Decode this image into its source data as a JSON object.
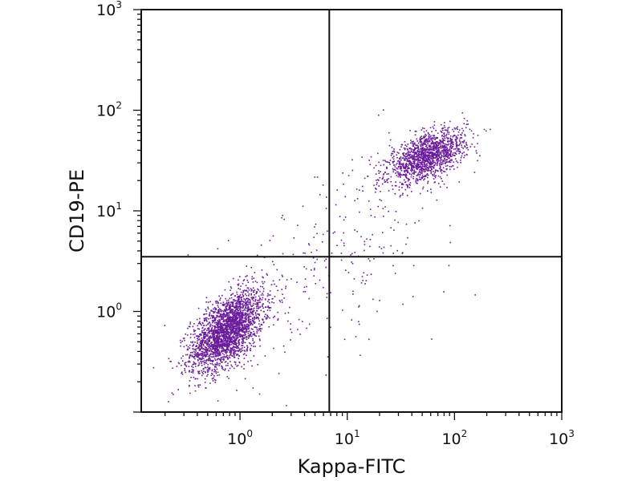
{
  "chart_data": {
    "type": "scatter",
    "subtype": "flow-cytometry-dot-plot",
    "xlabel": "Kappa-FITC",
    "ylabel": "CD19-PE",
    "xscale": "log",
    "yscale": "log",
    "xlim": [
      0.12,
      1000
    ],
    "ylim": [
      0.1,
      1000
    ],
    "x_ticks": [
      {
        "base": "10",
        "exp": "0",
        "value": 1
      },
      {
        "base": "10",
        "exp": "1",
        "value": 10
      },
      {
        "base": "10",
        "exp": "2",
        "value": 100
      },
      {
        "base": "10",
        "exp": "3",
        "value": 1000
      }
    ],
    "y_ticks": [
      {
        "base": "10",
        "exp": "0",
        "value": 1
      },
      {
        "base": "10",
        "exp": "1",
        "value": 10
      },
      {
        "base": "10",
        "exp": "2",
        "value": 100
      },
      {
        "base": "10",
        "exp": "3",
        "value": 1000
      }
    ],
    "quadrant_gates": {
      "x": 6.8,
      "y": 3.5
    },
    "point_color": "#6a1b9a",
    "populations": [
      {
        "name": "CD19-negative / Kappa-negative",
        "center_x": 0.75,
        "center_y": 0.65,
        "spread_log_x": 0.17,
        "spread_log_y": 0.2,
        "count": 2600
      },
      {
        "name": "CD19-positive / Kappa-positive",
        "center_x": 55,
        "center_y": 35,
        "spread_log_x": 0.18,
        "spread_log_y": 0.13,
        "count": 1500
      },
      {
        "name": "scattered events",
        "center_x": 8,
        "center_y": 4,
        "spread_log_x": 0.55,
        "spread_log_y": 0.55,
        "count": 280
      }
    ]
  }
}
